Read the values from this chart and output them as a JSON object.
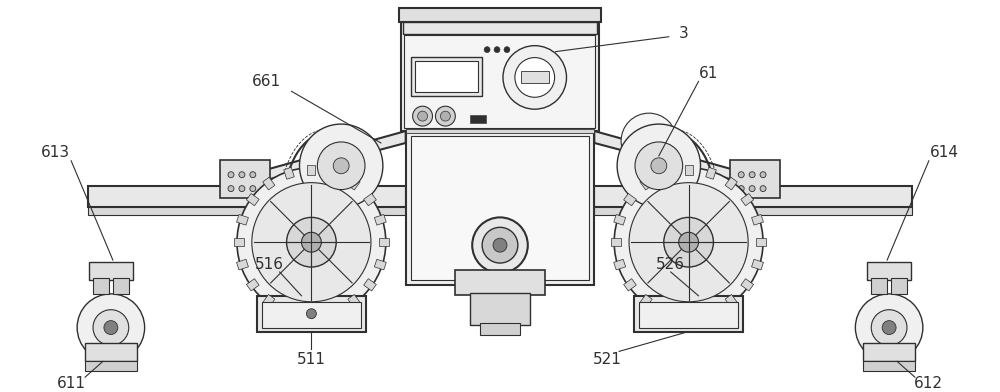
{
  "background_color": "#ffffff",
  "line_color": "#303030",
  "figsize": [
    10.0,
    3.92
  ],
  "dpi": 100,
  "ann_color": "#303030",
  "ann_lw": 0.8,
  "label_fs": 11
}
